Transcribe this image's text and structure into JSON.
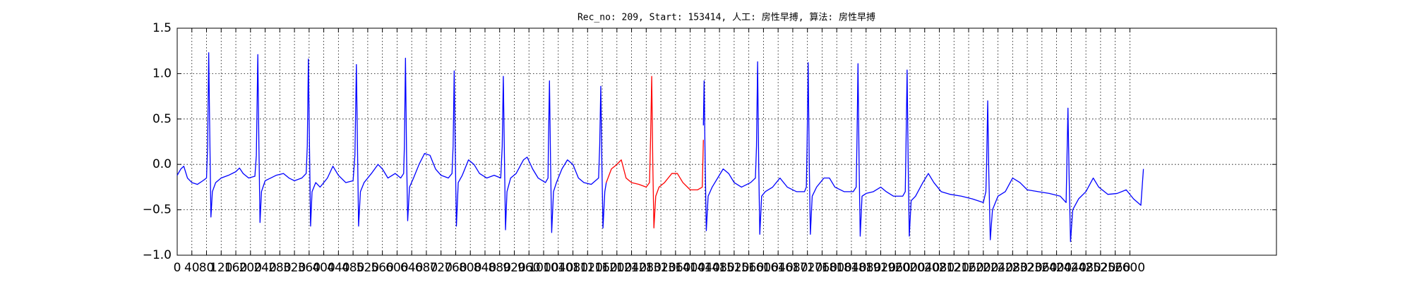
{
  "chart_data": {
    "type": "line",
    "title": "Rec_no: 209, Start: 153414, 人工: 房性早搏, 算法: 房性早搏",
    "xlim": [
      0,
      3000
    ],
    "ylim": [
      -1,
      1.5
    ],
    "xticks": [
      0,
      40,
      80,
      120,
      160,
      200,
      240,
      280,
      320,
      360,
      400,
      440,
      480,
      520,
      560,
      600,
      640,
      680,
      720,
      760,
      800,
      840,
      880,
      920,
      960,
      1000,
      1040,
      1080,
      1120,
      1160,
      1200,
      1240,
      1280,
      1320,
      1360,
      1400,
      1440,
      1480,
      1520,
      1560,
      1600,
      1640,
      1680,
      1720,
      1760,
      1800,
      1840,
      1880,
      1920,
      1960,
      2000,
      2040,
      2080,
      2120,
      2160,
      2200,
      2240,
      2280,
      2320,
      2360,
      2400,
      2440,
      2480,
      2520,
      2560,
      2600
    ],
    "yticks": [
      {
        "value": -1,
        "label": "−1.0"
      },
      {
        "value": -0.5,
        "label": "−0.5"
      },
      {
        "value": 0,
        "label": "0.0"
      },
      {
        "value": 0.5,
        "label": "0.5"
      },
      {
        "value": 1,
        "label": "1.0"
      },
      {
        "value": 1.5,
        "label": "1.5"
      }
    ],
    "grid": true,
    "series": [
      {
        "color": "#0000ff",
        "x": [
          0,
          10,
          18,
          28,
          40,
          55,
          70,
          80,
          83,
          86,
          89,
          92,
          96,
          105,
          120,
          140,
          160,
          170,
          180,
          195,
          212,
          216,
          220,
          223,
          226,
          230,
          240,
          255,
          270,
          290,
          305,
          320,
          340,
          352,
          355,
          358,
          361,
          364,
          368,
          378,
          390,
          410,
          425,
          440,
          460,
          480,
          485,
          489,
          492,
          495,
          500,
          510,
          530,
          548,
          560,
          575,
          595,
          610,
          618,
          620,
          623,
          626,
          629,
          634,
          645,
          660,
          675,
          690,
          705,
          720,
          740,
          750,
          753,
          756,
          759,
          762,
          767,
          778,
          795,
          810,
          825,
          845,
          865,
          883,
          887,
          890,
          893,
          896,
          900,
          910,
          925,
          945,
          955,
          970,
          985,
          1005,
          1012,
          1013,
          1016,
          1019,
          1022,
          1027,
          1035,
          1050,
          1065,
          1080,
          1095,
          1110,
          1130,
          1150,
          1153,
          1156,
          1159,
          1162,
          1167,
          1171,
          1300,
          1436,
          1438,
          1441,
          1444,
          1449,
          1460,
          1475,
          1490,
          1505,
          1520,
          1540,
          1565,
          1578,
          1581,
          1584,
          1587,
          1590,
          1595,
          1605,
          1625,
          1645,
          1665,
          1690,
          1712,
          1717,
          1719,
          1722,
          1725,
          1728,
          1733,
          1745,
          1765,
          1780,
          1795,
          1820,
          1845,
          1853,
          1855,
          1858,
          1861,
          1864,
          1869,
          1880,
          1900,
          1920,
          1935,
          1955,
          1980,
          1987,
          1989,
          1992,
          1995,
          1998,
          2003,
          2015,
          2035,
          2050,
          2065,
          2085,
          2110,
          2140,
          2170,
          2200,
          2207,
          2209,
          2212,
          2215,
          2219,
          2225,
          2240,
          2260,
          2280,
          2300,
          2320,
          2350,
          2380,
          2410,
          2426,
          2428,
          2431,
          2434,
          2438,
          2444,
          2460,
          2480,
          2500,
          2515,
          2540,
          2565,
          2590,
          2610,
          2630,
          2637
        ],
        "values": [
          -0.12,
          -0.05,
          -0.02,
          -0.15,
          -0.2,
          -0.22,
          -0.18,
          -0.15,
          0.2,
          1.23,
          0.3,
          -0.58,
          -0.3,
          -0.2,
          -0.15,
          -0.12,
          -0.08,
          -0.04,
          -0.1,
          -0.15,
          -0.13,
          0.1,
          1.21,
          0.2,
          -0.64,
          -0.3,
          -0.18,
          -0.15,
          -0.12,
          -0.1,
          -0.15,
          -0.18,
          -0.15,
          -0.1,
          0.2,
          1.16,
          0.2,
          -0.68,
          -0.3,
          -0.2,
          -0.25,
          -0.15,
          -0.02,
          -0.12,
          -0.2,
          -0.18,
          0.1,
          1.1,
          0.2,
          -0.68,
          -0.3,
          -0.2,
          -0.1,
          0.0,
          -0.05,
          -0.15,
          -0.1,
          -0.15,
          -0.1,
          0.2,
          1.17,
          0.1,
          -0.62,
          -0.25,
          -0.15,
          0.0,
          0.12,
          0.1,
          -0.05,
          -0.12,
          -0.15,
          -0.1,
          0.2,
          1.03,
          0.1,
          -0.68,
          -0.2,
          -0.12,
          0.05,
          0.0,
          -0.1,
          -0.15,
          -0.12,
          -0.15,
          0.2,
          0.97,
          0.1,
          -0.72,
          -0.3,
          -0.15,
          -0.1,
          0.05,
          0.08,
          -0.05,
          -0.15,
          -0.2,
          -0.15,
          0.2,
          0.92,
          0.0,
          -0.75,
          -0.3,
          -0.2,
          -0.05,
          0.05,
          0.0,
          -0.15,
          -0.2,
          -0.22,
          -0.15,
          0.2,
          0.86,
          0.0,
          -0.7,
          -0.3,
          -0.2,
          null,
          0.43,
          0.92,
          0.0,
          -0.73,
          -0.35,
          -0.25,
          -0.15,
          -0.05,
          -0.1,
          -0.2,
          -0.25,
          -0.2,
          -0.15,
          0.2,
          1.13,
          0.0,
          -0.77,
          -0.35,
          -0.3,
          -0.25,
          -0.15,
          -0.25,
          -0.3,
          -0.3,
          -0.25,
          0.2,
          1.12,
          0.0,
          -0.77,
          -0.35,
          -0.25,
          -0.15,
          -0.15,
          -0.25,
          -0.3,
          -0.3,
          -0.25,
          0.2,
          1.11,
          0.0,
          -0.79,
          -0.35,
          -0.32,
          -0.3,
          -0.25,
          -0.3,
          -0.35,
          -0.35,
          -0.3,
          0.2,
          1.04,
          0.0,
          -0.79,
          -0.4,
          -0.35,
          -0.2,
          -0.1,
          -0.2,
          -0.3,
          -0.33,
          -0.35,
          -0.38,
          -0.42,
          -0.3,
          0.0,
          0.7,
          -0.1,
          -0.83,
          -0.5,
          -0.35,
          -0.3,
          -0.15,
          -0.2,
          -0.28,
          -0.3,
          -0.32,
          -0.35,
          -0.42,
          0.0,
          0.62,
          -0.1,
          -0.85,
          -0.5,
          -0.38,
          -0.3,
          -0.15,
          -0.25,
          -0.33,
          -0.32,
          -0.28,
          -0.38,
          -0.45,
          -0.05
        ]
      },
      {
        "color": "#ff0000",
        "x": [
          1171,
          1185,
          1200,
          1212,
          1225,
          1240,
          1260,
          1280,
          1289,
          1292,
          1295,
          1298,
          1301,
          1306,
          1315,
          1330,
          1350,
          1365,
          1380,
          1400,
          1420,
          1433,
          1436
        ],
        "values": [
          -0.2,
          -0.05,
          0.0,
          0.05,
          -0.15,
          -0.2,
          -0.22,
          -0.25,
          -0.2,
          0.3,
          0.97,
          0.0,
          -0.7,
          -0.35,
          -0.25,
          -0.2,
          -0.1,
          -0.1,
          -0.2,
          -0.28,
          -0.28,
          -0.25,
          0.27
        ]
      }
    ]
  }
}
